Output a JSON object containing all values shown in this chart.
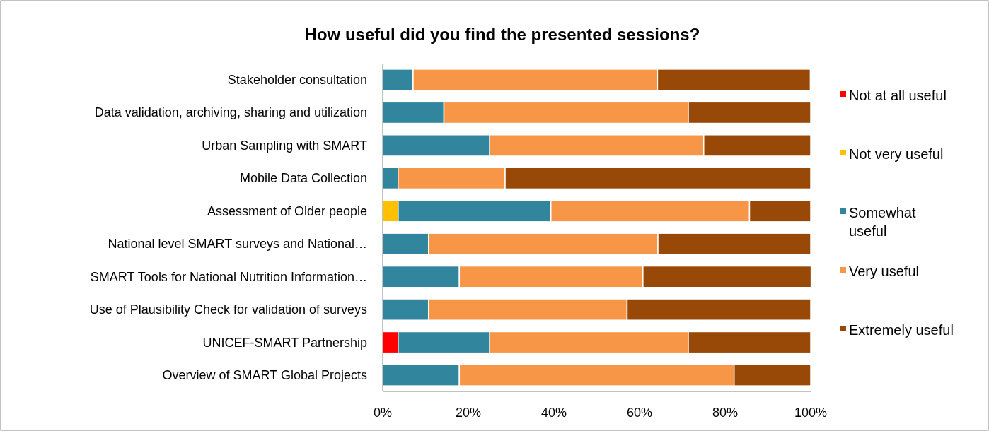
{
  "chart_data": {
    "type": "bar",
    "orientation": "horizontal",
    "stacked": true,
    "title": "How useful did you find the presented sessions?",
    "categories": [
      "Stakeholder consultation",
      "Data validation, archiving, sharing and utilization",
      "Urban Sampling with SMART",
      "Mobile Data Collection",
      "Assessment of Older people",
      "National level SMART surveys and National…",
      "SMART Tools for National Nutrition Information…",
      "Use of Plausibility Check for validation of surveys",
      "UNICEF-SMART Partnership",
      "Overview of SMART Global Projects"
    ],
    "series": [
      {
        "name": "Not at all useful",
        "color": "#ff0000",
        "values": [
          0,
          0,
          0,
          0,
          0,
          0,
          0,
          0,
          3.6,
          0
        ]
      },
      {
        "name": "Not very useful",
        "color": "#ffc000",
        "values": [
          0,
          0,
          0,
          0,
          3.6,
          0,
          0,
          0,
          0,
          0
        ]
      },
      {
        "name": "Somewhat useful",
        "color": "#31859c",
        "values": [
          7.1,
          14.3,
          25,
          3.6,
          35.7,
          10.7,
          17.9,
          10.7,
          21.4,
          17.9
        ]
      },
      {
        "name": "Very useful",
        "color": "#f79646",
        "values": [
          57.1,
          57.1,
          50,
          25,
          46.4,
          53.6,
          42.9,
          46.4,
          46.4,
          64.2
        ]
      },
      {
        "name": "Extremely useful",
        "color": "#984807",
        "values": [
          35.7,
          28.6,
          25,
          71.4,
          14.3,
          35.7,
          39.3,
          42.9,
          28.6,
          17.9
        ]
      }
    ],
    "xlim": [
      0,
      100
    ],
    "xticks": [
      {
        "value": 0,
        "label": "0%"
      },
      {
        "value": 20,
        "label": "20%"
      },
      {
        "value": 40,
        "label": "40%"
      },
      {
        "value": 60,
        "label": "60%"
      },
      {
        "value": 80,
        "label": "80%"
      },
      {
        "value": 100,
        "label": "100%"
      }
    ],
    "grid": false,
    "legend": "right"
  }
}
